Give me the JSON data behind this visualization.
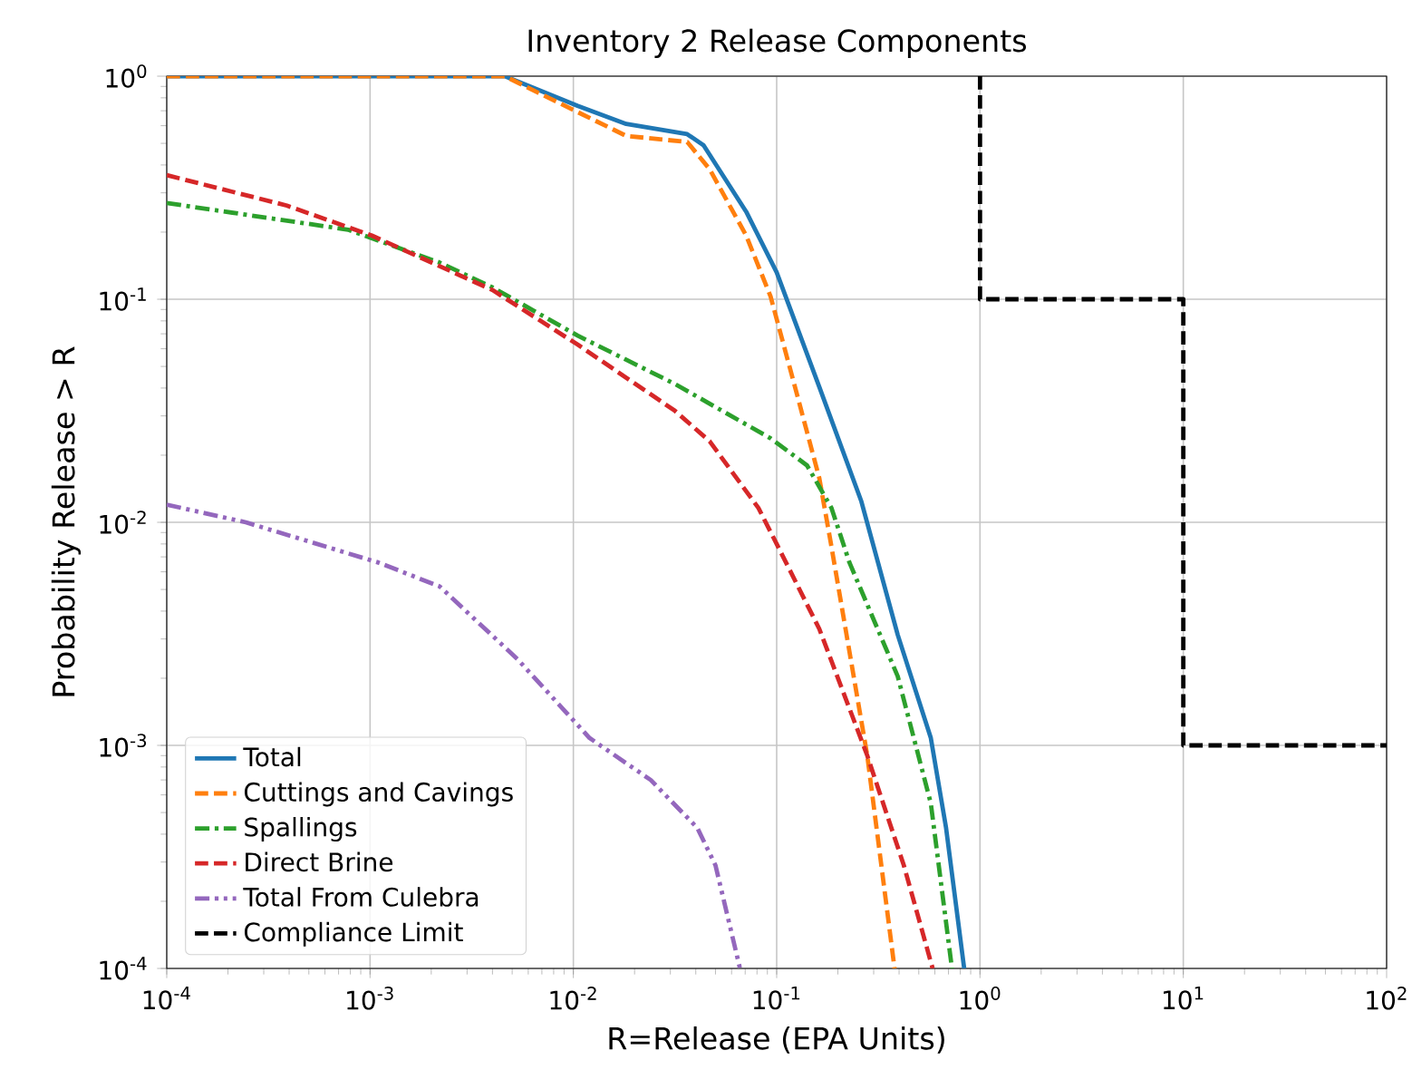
{
  "chart_data": {
    "type": "line",
    "title": "Inventory 2 Release Components",
    "xlabel": "R=Release (EPA Units)",
    "ylabel": "Probability Release > R",
    "log": "xy",
    "grid": true,
    "legend": "bottom left",
    "xlim": [
      0.0001,
      100
    ],
    "ylim": [
      0.0001,
      1
    ],
    "xticks": [
      {
        "value": 0.0001,
        "label": "10$^{-4}$"
      },
      {
        "value": 0.001,
        "label": "10$^{-3}$"
      },
      {
        "value": 0.01,
        "label": "10$^{-2}$"
      },
      {
        "value": 0.1,
        "label": "10$^{-1}$"
      },
      {
        "value": 1,
        "label": "10$^{0}$"
      },
      {
        "value": 10,
        "label": "10$^{1}$"
      },
      {
        "value": 100,
        "label": "10$^{2}$"
      }
    ],
    "yticks": [
      {
        "value": 0.0001,
        "label": "10$^{-4}$"
      },
      {
        "value": 0.001,
        "label": "10$^{-3}$"
      },
      {
        "value": 0.01,
        "label": "10$^{-2}$"
      },
      {
        "value": 0.1,
        "label": "10$^{-1}$"
      },
      {
        "value": 1,
        "label": "10$^{0}$"
      }
    ],
    "series": [
      {
        "name": "Total",
        "color": "#1f77b4",
        "line_style": "solid",
        "x": [
          0.0001,
          0.0046,
          0.0105,
          0.0182,
          0.0363,
          0.0437,
          0.0708,
          0.1,
          0.162,
          0.261,
          0.394,
          0.573,
          0.681,
          0.836
        ],
        "values": [
          1,
          1,
          0.736,
          0.611,
          0.55,
          0.49,
          0.247,
          0.132,
          0.0405,
          0.0124,
          0.00313,
          0.00108,
          0.000427,
          0.0001
        ]
      },
      {
        "name": "Cuttings and Cavings",
        "color": "#ff7f0e",
        "line_style": "dashed",
        "x": [
          0.0001,
          0.0046,
          0.0105,
          0.0182,
          0.0363,
          0.0468,
          0.0708,
          0.0933,
          0.123,
          0.162,
          0.185,
          0.279,
          0.38
        ],
        "values": [
          1,
          1,
          0.69,
          0.54,
          0.507,
          0.383,
          0.193,
          0.103,
          0.0405,
          0.0158,
          0.008,
          0.0009,
          0.0001
        ]
      },
      {
        "name": "Spallings",
        "color": "#2ca02c",
        "line_style": "dashdot",
        "x": [
          0.0001,
          0.00078,
          0.0022,
          0.004,
          0.0105,
          0.0316,
          0.0933,
          0.141,
          0.186,
          0.228,
          0.394,
          0.573,
          0.728
        ],
        "values": [
          0.27,
          0.205,
          0.146,
          0.113,
          0.0687,
          0.0417,
          0.0238,
          0.018,
          0.0116,
          0.0066,
          0.00204,
          0.00055,
          0.0001
        ]
      },
      {
        "name": "Direct Brine",
        "color": "#d62728",
        "line_style": "dashed",
        "x": [
          0.0001,
          0.00039,
          0.00102,
          0.004,
          0.0105,
          0.0316,
          0.0468,
          0.0813,
          0.1,
          0.162,
          0.279,
          0.422,
          0.585
        ],
        "values": [
          0.36,
          0.263,
          0.193,
          0.11,
          0.0626,
          0.0316,
          0.0231,
          0.0116,
          0.008,
          0.00333,
          0.0009,
          0.00029,
          0.0001
        ]
      },
      {
        "name": "Total From Culebra",
        "color": "#9467bd",
        "line_style": "dashdotdot",
        "x": [
          0.0001,
          0.000245,
          0.0011,
          0.0022,
          0.0053,
          0.012,
          0.024,
          0.0407,
          0.05,
          0.066
        ],
        "values": [
          0.012,
          0.01,
          0.0066,
          0.00516,
          0.00244,
          0.00108,
          0.0007,
          0.000427,
          0.00029,
          0.0001
        ]
      },
      {
        "name": "Compliance Limit",
        "color": "#000000",
        "line_style": "dashed",
        "x": [
          1,
          1,
          10,
          10,
          100
        ],
        "values": [
          1,
          0.1,
          0.1,
          0.001,
          0.001
        ]
      }
    ]
  }
}
